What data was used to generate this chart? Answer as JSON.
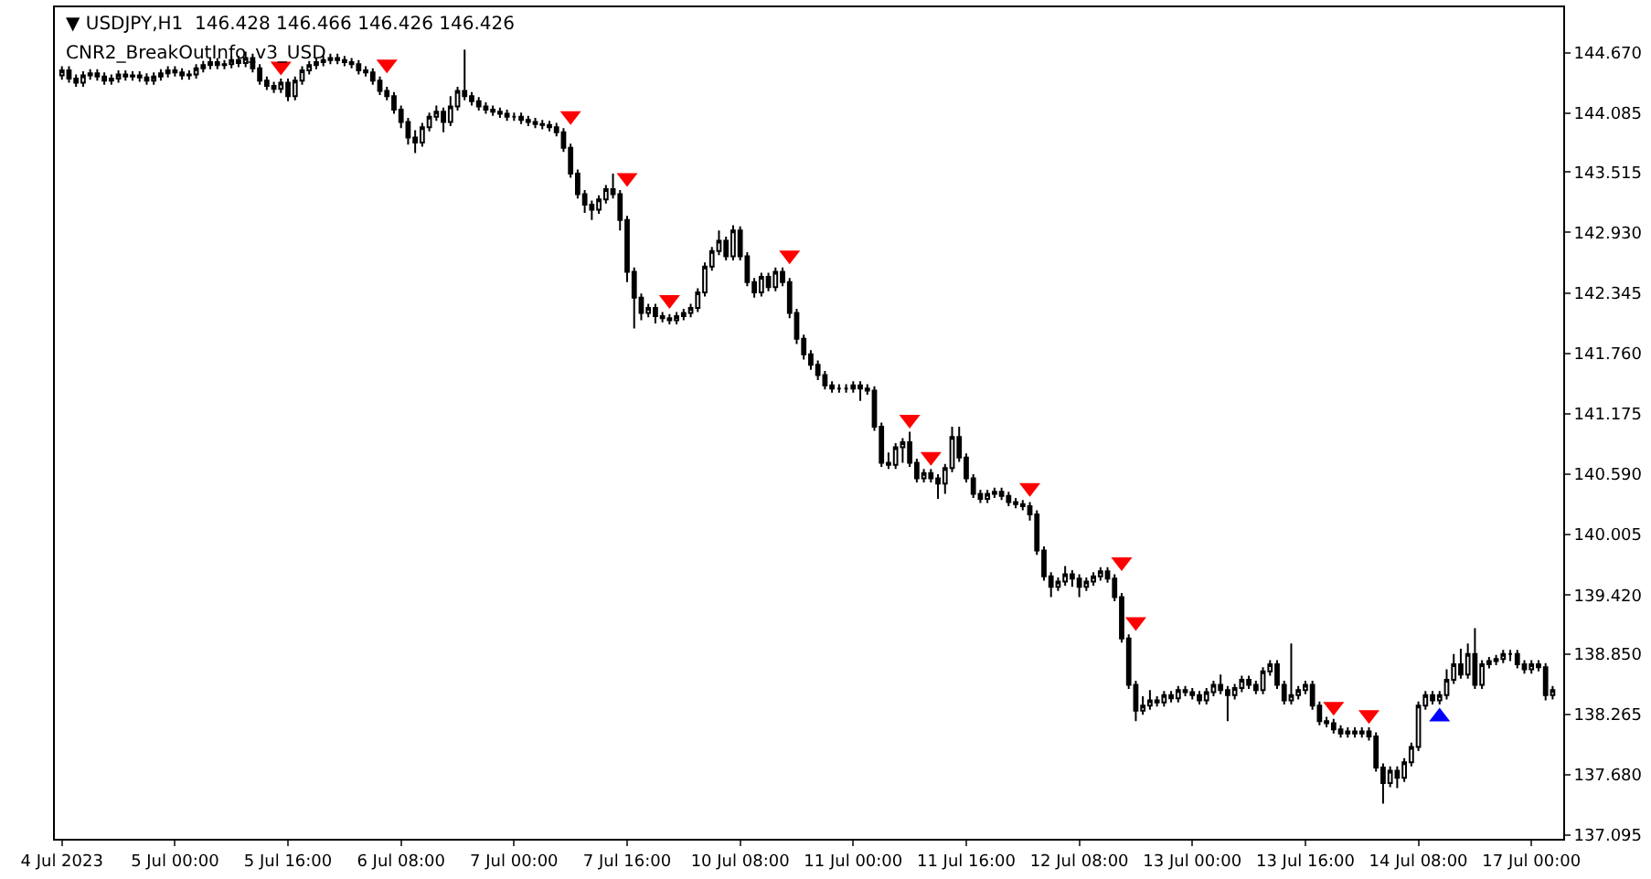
{
  "chart_data": {
    "type": "candlestick",
    "title": "▼ USDJPY,H1  146.428 146.466 146.426 146.426",
    "subtitle": "CNR2_BreakOutInfo_v3_USD",
    "categories": [
      "4 Jul 2023",
      null,
      null,
      null,
      null,
      null,
      null,
      null,
      null,
      null,
      null,
      null,
      null,
      null,
      null,
      null,
      "5 Jul 00:00",
      null,
      null,
      null,
      null,
      null,
      null,
      null,
      null,
      null,
      null,
      null,
      null,
      null,
      null,
      null,
      "5 Jul 16:00",
      null,
      null,
      null,
      null,
      null,
      null,
      null,
      null,
      null,
      null,
      null,
      null,
      null,
      null,
      null,
      "6 Jul 08:00",
      null,
      null,
      null,
      null,
      null,
      null,
      null,
      null,
      null,
      null,
      null,
      null,
      null,
      null,
      null,
      "7 Jul 00:00",
      null,
      null,
      null,
      null,
      null,
      null,
      null,
      null,
      null,
      null,
      null,
      null,
      null,
      null,
      null,
      "7 Jul 16:00",
      null,
      null,
      null,
      null,
      null,
      null,
      null,
      null,
      null,
      null,
      null,
      null,
      null,
      null,
      null,
      "10 Jul 08:00",
      null,
      null,
      null,
      null,
      null,
      null,
      null,
      null,
      null,
      null,
      null,
      null,
      null,
      null,
      null,
      "11 Jul 00:00",
      null,
      null,
      null,
      null,
      null,
      null,
      null,
      null,
      null,
      null,
      null,
      null,
      null,
      null,
      null,
      "11 Jul 16:00",
      null,
      null,
      null,
      null,
      null,
      null,
      null,
      null,
      null,
      null,
      null,
      null,
      null,
      null,
      null,
      "12 Jul 08:00",
      null,
      null,
      null,
      null,
      null,
      null,
      null,
      null,
      null,
      null,
      null,
      null,
      null,
      null,
      null,
      "13 Jul 00:00",
      null,
      null,
      null,
      null,
      null,
      null,
      null,
      null,
      null,
      null,
      null,
      null,
      null,
      null,
      null,
      "13 Jul 16:00",
      null,
      null,
      null,
      null,
      null,
      null,
      null,
      null,
      null,
      null,
      null,
      null,
      null,
      null,
      null,
      "14 Jul 08:00",
      null,
      null,
      null,
      null,
      null,
      null,
      null,
      null,
      null,
      null,
      null,
      null,
      null,
      null,
      null,
      "17 Jul 00:00",
      null,
      null,
      null
    ],
    "ohlc": [
      [
        144.45,
        144.54,
        144.41,
        144.5
      ],
      [
        144.5,
        144.54,
        144.38,
        144.42
      ],
      [
        144.42,
        144.46,
        144.34,
        144.38
      ],
      [
        144.38,
        144.49,
        144.34,
        144.45
      ],
      [
        144.45,
        144.51,
        144.41,
        144.47
      ],
      [
        144.47,
        144.51,
        144.4,
        144.44
      ],
      [
        144.44,
        144.48,
        144.36,
        144.4
      ],
      [
        144.4,
        144.46,
        144.36,
        144.42
      ],
      [
        144.42,
        144.5,
        144.38,
        144.46
      ],
      [
        144.46,
        144.5,
        144.4,
        144.44
      ],
      [
        144.44,
        144.49,
        144.4,
        144.45
      ],
      [
        144.45,
        144.49,
        144.39,
        144.43
      ],
      [
        144.43,
        144.47,
        144.36,
        144.4
      ],
      [
        144.4,
        144.48,
        144.36,
        144.44
      ],
      [
        144.44,
        144.51,
        144.4,
        144.47
      ],
      [
        144.47,
        144.54,
        144.43,
        144.5
      ],
      [
        144.5,
        144.54,
        144.44,
        144.48
      ],
      [
        144.48,
        144.52,
        144.41,
        144.45
      ],
      [
        144.45,
        144.5,
        144.41,
        144.46
      ],
      [
        144.46,
        144.56,
        144.42,
        144.52
      ],
      [
        144.52,
        144.59,
        144.48,
        144.55
      ],
      [
        144.55,
        144.62,
        144.51,
        144.58
      ],
      [
        144.58,
        144.62,
        144.51,
        144.55
      ],
      [
        144.55,
        144.6,
        144.51,
        144.56
      ],
      [
        144.56,
        144.64,
        144.52,
        144.6
      ],
      [
        144.6,
        144.64,
        144.53,
        144.57
      ],
      [
        144.57,
        144.68,
        144.53,
        144.62
      ],
      [
        144.62,
        144.66,
        144.48,
        144.52
      ],
      [
        144.52,
        144.56,
        144.36,
        144.4
      ],
      [
        144.4,
        144.44,
        144.31,
        144.35
      ],
      [
        144.35,
        144.39,
        144.28,
        144.32
      ],
      [
        144.32,
        144.42,
        144.28,
        144.38
      ],
      [
        144.38,
        144.42,
        144.2,
        144.25
      ],
      [
        144.25,
        144.44,
        144.21,
        144.4
      ],
      [
        144.4,
        144.54,
        144.36,
        144.5
      ],
      [
        144.5,
        144.59,
        144.46,
        144.55
      ],
      [
        144.55,
        144.62,
        144.51,
        144.58
      ],
      [
        144.58,
        144.64,
        144.54,
        144.6
      ],
      [
        144.6,
        144.66,
        144.56,
        144.62
      ],
      [
        144.62,
        144.66,
        144.56,
        144.6
      ],
      [
        144.6,
        144.64,
        144.54,
        144.58
      ],
      [
        144.58,
        144.62,
        144.52,
        144.56
      ],
      [
        144.56,
        144.6,
        144.46,
        144.5
      ],
      [
        144.5,
        144.54,
        144.44,
        144.48
      ],
      [
        144.48,
        144.52,
        144.36,
        144.4
      ],
      [
        144.4,
        144.44,
        144.26,
        144.3
      ],
      [
        144.3,
        144.34,
        144.21,
        144.25
      ],
      [
        144.25,
        144.29,
        144.08,
        144.12
      ],
      [
        144.12,
        144.16,
        143.94,
        144.0
      ],
      [
        144.0,
        144.04,
        143.78,
        143.85
      ],
      [
        143.85,
        143.92,
        143.7,
        143.8
      ],
      [
        143.8,
        143.99,
        143.76,
        143.95
      ],
      [
        143.95,
        144.09,
        143.91,
        144.05
      ],
      [
        144.05,
        144.16,
        144.01,
        144.1
      ],
      [
        144.1,
        144.14,
        143.9,
        144.0
      ],
      [
        144.0,
        144.25,
        143.96,
        144.15
      ],
      [
        144.15,
        144.34,
        144.11,
        144.3
      ],
      [
        144.3,
        144.7,
        144.21,
        144.25
      ],
      [
        144.25,
        144.29,
        144.16,
        144.2
      ],
      [
        144.2,
        144.24,
        144.11,
        144.15
      ],
      [
        144.15,
        144.19,
        144.08,
        144.12
      ],
      [
        144.12,
        144.16,
        144.06,
        144.1
      ],
      [
        144.1,
        144.14,
        144.04,
        144.08
      ],
      [
        144.08,
        144.12,
        144.01,
        144.05
      ],
      [
        144.05,
        144.09,
        144.01,
        144.05
      ],
      [
        144.05,
        144.09,
        143.98,
        144.02
      ],
      [
        144.02,
        144.06,
        143.96,
        144.0
      ],
      [
        144.0,
        144.04,
        143.94,
        143.98
      ],
      [
        143.98,
        144.02,
        143.93,
        143.97
      ],
      [
        143.97,
        144.01,
        143.91,
        143.95
      ],
      [
        143.95,
        143.99,
        143.86,
        143.9
      ],
      [
        143.9,
        143.94,
        143.71,
        143.75
      ],
      [
        143.75,
        143.79,
        143.46,
        143.5
      ],
      [
        143.5,
        143.54,
        143.26,
        143.3
      ],
      [
        143.3,
        143.34,
        143.12,
        143.2
      ],
      [
        143.2,
        143.24,
        143.05,
        143.15
      ],
      [
        143.15,
        143.29,
        143.11,
        143.25
      ],
      [
        143.25,
        143.39,
        143.21,
        143.35
      ],
      [
        143.35,
        143.5,
        143.26,
        143.3
      ],
      [
        143.3,
        143.34,
        142.95,
        143.05
      ],
      [
        143.05,
        143.09,
        142.45,
        142.55
      ],
      [
        142.55,
        142.59,
        142.0,
        142.3
      ],
      [
        142.3,
        142.34,
        142.08,
        142.15
      ],
      [
        142.15,
        142.24,
        142.11,
        142.2
      ],
      [
        142.2,
        142.24,
        142.05,
        142.12
      ],
      [
        142.12,
        142.16,
        142.06,
        142.1
      ],
      [
        142.1,
        142.14,
        142.04,
        142.08
      ],
      [
        142.08,
        142.16,
        142.04,
        142.12
      ],
      [
        142.12,
        142.19,
        142.08,
        142.15
      ],
      [
        142.15,
        142.24,
        142.11,
        142.2
      ],
      [
        142.2,
        142.39,
        142.16,
        142.35
      ],
      [
        142.35,
        142.64,
        142.31,
        142.6
      ],
      [
        142.6,
        142.79,
        142.56,
        142.75
      ],
      [
        142.75,
        142.95,
        142.71,
        142.85
      ],
      [
        142.85,
        142.89,
        142.66,
        142.7
      ],
      [
        142.7,
        143.0,
        142.66,
        142.95
      ],
      [
        142.95,
        142.99,
        142.66,
        142.7
      ],
      [
        142.7,
        142.74,
        142.41,
        142.45
      ],
      [
        142.45,
        142.49,
        142.3,
        142.35
      ],
      [
        142.35,
        142.54,
        142.31,
        142.5
      ],
      [
        142.5,
        142.54,
        142.36,
        142.4
      ],
      [
        142.4,
        142.59,
        142.36,
        142.55
      ],
      [
        142.55,
        142.59,
        142.41,
        142.45
      ],
      [
        142.45,
        142.49,
        142.1,
        142.15
      ],
      [
        142.15,
        142.19,
        141.85,
        141.9
      ],
      [
        141.9,
        141.94,
        141.7,
        141.75
      ],
      [
        141.75,
        141.79,
        141.6,
        141.65
      ],
      [
        141.65,
        141.69,
        141.5,
        141.55
      ],
      [
        141.55,
        141.59,
        141.41,
        141.45
      ],
      [
        141.45,
        141.49,
        141.38,
        141.42
      ],
      [
        141.42,
        141.46,
        141.38,
        141.42
      ],
      [
        141.42,
        141.46,
        141.38,
        141.42
      ],
      [
        141.42,
        141.49,
        141.38,
        141.45
      ],
      [
        141.45,
        141.49,
        141.3,
        141.42
      ],
      [
        141.42,
        141.46,
        141.36,
        141.4
      ],
      [
        141.4,
        141.44,
        141.01,
        141.05
      ],
      [
        141.05,
        141.09,
        140.66,
        140.7
      ],
      [
        140.7,
        140.8,
        140.64,
        140.68
      ],
      [
        140.68,
        140.89,
        140.64,
        140.85
      ],
      [
        140.85,
        140.94,
        140.7,
        140.9
      ],
      [
        140.9,
        141.0,
        140.66,
        140.7
      ],
      [
        140.7,
        140.74,
        140.51,
        140.55
      ],
      [
        140.55,
        140.64,
        140.51,
        140.6
      ],
      [
        140.6,
        140.64,
        140.51,
        140.55
      ],
      [
        140.55,
        140.59,
        140.35,
        140.5
      ],
      [
        140.5,
        140.69,
        140.4,
        140.65
      ],
      [
        140.65,
        141.05,
        140.61,
        140.95
      ],
      [
        140.95,
        141.05,
        140.71,
        140.75
      ],
      [
        140.75,
        140.79,
        140.51,
        140.55
      ],
      [
        140.55,
        140.59,
        140.36,
        140.4
      ],
      [
        140.4,
        140.44,
        140.31,
        140.35
      ],
      [
        140.35,
        140.44,
        140.31,
        140.4
      ],
      [
        140.4,
        140.46,
        140.36,
        140.42
      ],
      [
        140.42,
        140.46,
        140.34,
        140.38
      ],
      [
        140.38,
        140.42,
        140.28,
        140.32
      ],
      [
        140.32,
        140.36,
        140.26,
        140.3
      ],
      [
        140.3,
        140.34,
        140.24,
        140.28
      ],
      [
        140.28,
        140.32,
        140.14,
        140.2
      ],
      [
        140.2,
        140.24,
        139.81,
        139.85
      ],
      [
        139.85,
        139.89,
        139.56,
        139.6
      ],
      [
        139.6,
        139.64,
        139.4,
        139.5
      ],
      [
        139.5,
        139.59,
        139.46,
        139.55
      ],
      [
        139.55,
        139.7,
        139.51,
        139.62
      ],
      [
        139.62,
        139.66,
        139.5,
        139.58
      ],
      [
        139.58,
        139.62,
        139.4,
        139.5
      ],
      [
        139.5,
        139.59,
        139.46,
        139.55
      ],
      [
        139.55,
        139.64,
        139.51,
        139.6
      ],
      [
        139.6,
        139.69,
        139.56,
        139.65
      ],
      [
        139.65,
        139.69,
        139.54,
        139.58
      ],
      [
        139.58,
        139.62,
        139.36,
        139.4
      ],
      [
        139.4,
        139.44,
        138.96,
        139.0
      ],
      [
        139.0,
        139.04,
        138.51,
        138.55
      ],
      [
        138.55,
        138.59,
        138.2,
        138.3
      ],
      [
        138.3,
        138.44,
        138.26,
        138.35
      ],
      [
        138.35,
        138.5,
        138.31,
        138.4
      ],
      [
        138.4,
        138.44,
        138.34,
        138.38
      ],
      [
        138.38,
        138.49,
        138.34,
        138.45
      ],
      [
        138.45,
        138.49,
        138.38,
        138.42
      ],
      [
        138.42,
        138.54,
        138.38,
        138.5
      ],
      [
        138.5,
        138.54,
        138.44,
        138.48
      ],
      [
        138.48,
        138.52,
        138.41,
        138.45
      ],
      [
        138.45,
        138.49,
        138.36,
        138.4
      ],
      [
        138.4,
        138.52,
        138.36,
        138.48
      ],
      [
        138.48,
        138.59,
        138.44,
        138.55
      ],
      [
        138.55,
        138.65,
        138.46,
        138.5
      ],
      [
        138.5,
        138.54,
        138.2,
        138.45
      ],
      [
        138.45,
        138.56,
        138.41,
        138.52
      ],
      [
        138.52,
        138.64,
        138.48,
        138.6
      ],
      [
        138.6,
        138.64,
        138.51,
        138.55
      ],
      [
        138.55,
        138.59,
        138.46,
        138.5
      ],
      [
        138.5,
        138.72,
        138.46,
        138.68
      ],
      [
        138.68,
        138.79,
        138.64,
        138.75
      ],
      [
        138.75,
        138.79,
        138.51,
        138.55
      ],
      [
        138.55,
        138.59,
        138.36,
        138.4
      ],
      [
        138.4,
        138.95,
        138.36,
        138.45
      ],
      [
        138.45,
        138.54,
        138.41,
        138.5
      ],
      [
        138.5,
        138.59,
        138.46,
        138.55
      ],
      [
        138.55,
        138.59,
        138.31,
        138.35
      ],
      [
        138.35,
        138.39,
        138.16,
        138.2
      ],
      [
        138.2,
        138.24,
        138.14,
        138.18
      ],
      [
        138.18,
        138.22,
        138.08,
        138.12
      ],
      [
        138.12,
        138.16,
        138.04,
        138.08
      ],
      [
        138.08,
        138.14,
        138.04,
        138.1
      ],
      [
        138.1,
        138.14,
        138.04,
        138.08
      ],
      [
        138.08,
        138.14,
        138.04,
        138.1
      ],
      [
        138.1,
        138.14,
        138.01,
        138.05
      ],
      [
        138.05,
        138.09,
        137.71,
        137.75
      ],
      [
        137.75,
        137.79,
        137.4,
        137.6
      ],
      [
        137.6,
        137.76,
        137.56,
        137.72
      ],
      [
        137.72,
        137.76,
        137.55,
        137.65
      ],
      [
        137.65,
        137.84,
        137.61,
        137.8
      ],
      [
        137.8,
        137.99,
        137.76,
        137.95
      ],
      [
        137.95,
        138.39,
        137.91,
        138.35
      ],
      [
        138.35,
        138.49,
        138.31,
        138.45
      ],
      [
        138.45,
        138.49,
        138.36,
        138.4
      ],
      [
        138.4,
        138.49,
        138.36,
        138.45
      ],
      [
        138.45,
        138.7,
        138.41,
        138.6
      ],
      [
        138.6,
        138.85,
        138.56,
        138.75
      ],
      [
        138.75,
        138.9,
        138.61,
        138.65
      ],
      [
        138.65,
        138.95,
        138.61,
        138.85
      ],
      [
        138.85,
        139.1,
        138.51,
        138.55
      ],
      [
        138.55,
        138.79,
        138.51,
        138.75
      ],
      [
        138.75,
        138.82,
        138.71,
        138.78
      ],
      [
        138.78,
        138.84,
        138.74,
        138.8
      ],
      [
        138.8,
        138.89,
        138.76,
        138.85
      ],
      [
        138.85,
        138.89,
        138.78,
        138.85
      ],
      [
        138.85,
        138.89,
        138.71,
        138.75
      ],
      [
        138.75,
        138.79,
        138.66,
        138.7
      ],
      [
        138.7,
        138.79,
        138.66,
        138.75
      ],
      [
        138.75,
        138.79,
        138.68,
        138.72
      ],
      [
        138.72,
        138.76,
        138.4,
        138.45
      ],
      [
        138.45,
        138.54,
        138.41,
        138.5
      ]
    ],
    "color": "#000000",
    "series": [
      {
        "type": "scatter",
        "color": "#ff0000",
        "marker": "triangle",
        "values": [
          null,
          null,
          null,
          null,
          null,
          null,
          null,
          null,
          null,
          null,
          null,
          null,
          null,
          null,
          null,
          null,
          null,
          null,
          null,
          null,
          null,
          null,
          null,
          null,
          null,
          null,
          null,
          null,
          null,
          null,
          null,
          144.54,
          null,
          null,
          null,
          null,
          null,
          null,
          null,
          null,
          null,
          null,
          null,
          null,
          null,
          null,
          144.56,
          null,
          null,
          null,
          null,
          null,
          null,
          null,
          null,
          null,
          null,
          null,
          null,
          null,
          null,
          null,
          null,
          null,
          null,
          null,
          null,
          null,
          null,
          null,
          null,
          null,
          144.06,
          null,
          null,
          null,
          null,
          null,
          null,
          null,
          143.46,
          null,
          null,
          null,
          null,
          null,
          142.28,
          null,
          null,
          null,
          null,
          null,
          null,
          null,
          null,
          null,
          null,
          null,
          null,
          null,
          null,
          null,
          null,
          142.71,
          null,
          null,
          null,
          null,
          null,
          null,
          null,
          null,
          null,
          null,
          null,
          null,
          null,
          null,
          null,
          null,
          141.12,
          null,
          null,
          140.76,
          null,
          null,
          null,
          null,
          null,
          null,
          null,
          null,
          null,
          null,
          null,
          null,
          null,
          140.46,
          null,
          null,
          null,
          null,
          null,
          null,
          null,
          null,
          null,
          null,
          null,
          null,
          139.74,
          null,
          139.16,
          null,
          null,
          null,
          null,
          null,
          null,
          null,
          null,
          null,
          null,
          null,
          null,
          null,
          null,
          null,
          null,
          null,
          null,
          null,
          null,
          null,
          null,
          null,
          null,
          null,
          null,
          null,
          138.34,
          null,
          null,
          null,
          null,
          138.26,
          null,
          null,
          null,
          null,
          null,
          null,
          null,
          null,
          null,
          null,
          null,
          null,
          null,
          null,
          null,
          null,
          null,
          null,
          null,
          null,
          null,
          null,
          null,
          null,
          null,
          null
        ]
      },
      {
        "type": "scatter",
        "color": "#0000ff",
        "marker": "triangle",
        "values": [
          null,
          null,
          null,
          null,
          null,
          null,
          null,
          null,
          null,
          null,
          null,
          null,
          null,
          null,
          null,
          null,
          null,
          null,
          null,
          null,
          null,
          null,
          null,
          null,
          null,
          null,
          null,
          null,
          null,
          null,
          null,
          null,
          null,
          null,
          null,
          null,
          null,
          null,
          null,
          null,
          null,
          null,
          null,
          null,
          null,
          null,
          null,
          null,
          null,
          null,
          null,
          null,
          null,
          null,
          null,
          null,
          null,
          null,
          null,
          null,
          null,
          null,
          null,
          null,
          null,
          null,
          null,
          null,
          null,
          null,
          null,
          null,
          null,
          null,
          null,
          null,
          null,
          null,
          null,
          null,
          null,
          null,
          null,
          null,
          null,
          null,
          null,
          null,
          null,
          null,
          null,
          null,
          null,
          null,
          null,
          null,
          null,
          null,
          null,
          null,
          null,
          null,
          null,
          null,
          null,
          null,
          null,
          null,
          null,
          null,
          null,
          null,
          null,
          null,
          null,
          null,
          null,
          null,
          null,
          null,
          null,
          null,
          null,
          null,
          null,
          null,
          null,
          null,
          null,
          null,
          null,
          null,
          null,
          null,
          null,
          null,
          null,
          null,
          null,
          null,
          null,
          null,
          null,
          null,
          null,
          null,
          null,
          null,
          null,
          null,
          null,
          null,
          null,
          null,
          null,
          null,
          null,
          null,
          null,
          null,
          null,
          null,
          null,
          null,
          null,
          null,
          null,
          null,
          null,
          null,
          null,
          null,
          null,
          null,
          null,
          null,
          null,
          null,
          null,
          null,
          null,
          null,
          null,
          null,
          null,
          null,
          null,
          null,
          null,
          null,
          null,
          null,
          null,
          null,
          null,
          138.24,
          null,
          null,
          null,
          null,
          null,
          null,
          null,
          null,
          null,
          null,
          null,
          null,
          null,
          null,
          null,
          null
        ]
      }
    ],
    "ylim": [
      137.06,
      145.11
    ],
    "yticks": [
      {
        "value": 137.095,
        "label": "137.095"
      },
      {
        "value": 137.68,
        "label": "137.680"
      },
      {
        "value": 138.265,
        "label": "138.265"
      },
      {
        "value": 138.85,
        "label": "138.850"
      },
      {
        "value": 139.42,
        "label": "139.420"
      },
      {
        "value": 140.005,
        "label": "140.005"
      },
      {
        "value": 140.59,
        "label": "140.590"
      },
      {
        "value": 141.175,
        "label": "141.175"
      },
      {
        "value": 141.76,
        "label": "141.760"
      },
      {
        "value": 142.345,
        "label": "142.345"
      },
      {
        "value": 142.93,
        "label": "142.930"
      },
      {
        "value": 143.515,
        "label": "143.515"
      },
      {
        "value": 144.085,
        "label": "144.085"
      },
      {
        "value": 144.67,
        "label": "144.670"
      }
    ]
  }
}
